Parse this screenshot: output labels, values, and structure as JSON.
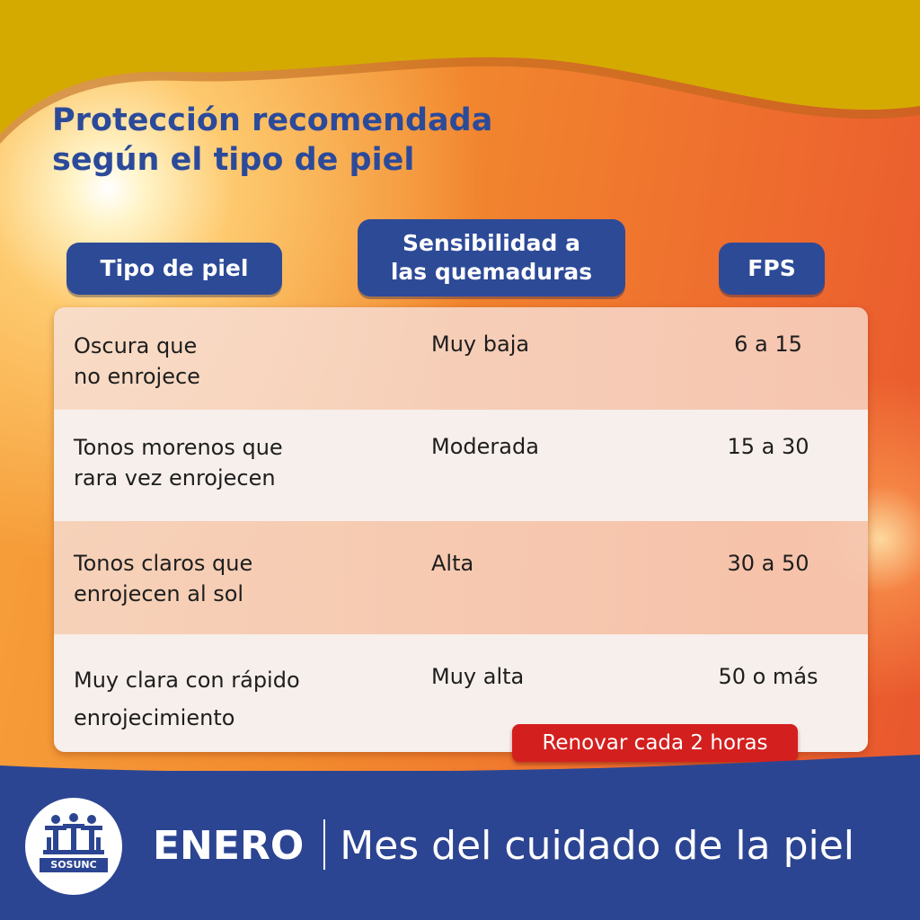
{
  "title": [
    "Protección recomendada",
    "según el tipo de piel"
  ],
  "headers": {
    "skin_type": "Tipo de piel",
    "sensitivity": [
      "Sensibilidad a",
      "las quemaduras"
    ],
    "spf": "FPS"
  },
  "rows": [
    {
      "skin": [
        "Oscura que",
        "no enrojece"
      ],
      "sensitivity": "Muy baja",
      "spf": "6 a 15"
    },
    {
      "skin": [
        "Tonos morenos que",
        "rara vez enrojecen"
      ],
      "sensitivity": "Moderada",
      "spf": "15 a 30"
    },
    {
      "skin": [
        "Tonos claros que",
        "enrojecen al sol"
      ],
      "sensitivity": "Alta",
      "spf": "30 a 50"
    },
    {
      "skin": [
        "Muy clara con rápido",
        "enrojecimiento"
      ],
      "sensitivity": "Muy alta",
      "spf": "50 o más"
    }
  ],
  "badge": "Renovar cada 2 horas",
  "footer": {
    "month": "ENERO",
    "subtitle": "Mes del cuidado de la piel",
    "logo_text": "SOSUNC"
  },
  "colors": {
    "navy": "#2d4a97",
    "mustard": "#d4a900",
    "badge_red": "#d41f1f",
    "row_light": "#f7eeea",
    "row_tinted": "#f6d2bf"
  },
  "icons": [
    "logo-people-icon"
  ]
}
